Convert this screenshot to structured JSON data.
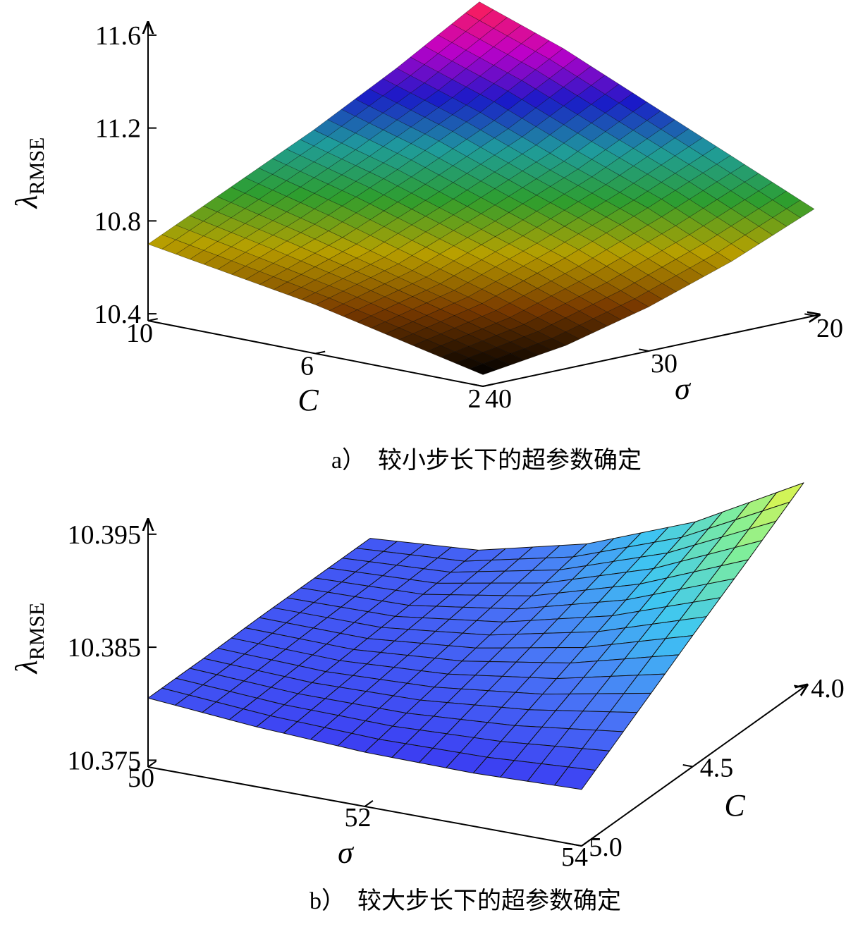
{
  "chart_data": [
    {
      "type": "surface",
      "xlabel": "C",
      "ylabel": "σ",
      "zlabel": "λ",
      "zlabel_subscript": "RMSE",
      "caption": "a）  较小步长下的超参数确定",
      "x": [
        2,
        4,
        6,
        8,
        10
      ],
      "y": [
        20,
        25,
        30,
        35,
        40
      ],
      "z": [
        [
          10.83,
          10.68,
          10.56,
          10.47,
          10.42
        ],
        [
          10.99,
          10.84,
          10.7,
          10.58,
          10.5
        ],
        [
          11.15,
          10.97,
          10.82,
          10.68,
          10.58
        ],
        [
          11.31,
          11.11,
          10.94,
          10.78,
          10.64
        ],
        [
          11.44,
          11.23,
          11.04,
          10.87,
          10.7
        ]
      ],
      "xlim": [
        2,
        10
      ],
      "ylim": [
        20,
        40
      ],
      "zlim": [
        10.37,
        11.63
      ],
      "xticks": [
        2,
        6,
        10
      ],
      "yticks": [
        20,
        30,
        40
      ],
      "zticks": [
        10.4,
        10.8,
        11.2,
        11.6
      ],
      "colormap": [
        "#000000",
        "#7a3a00",
        "#b8a000",
        "#2e9e2e",
        "#1f9c9c",
        "#1a1ac8",
        "#c000c8",
        "#ff2050"
      ]
    },
    {
      "type": "surface",
      "xlabel": "σ",
      "ylabel": "C",
      "zlabel": "λ",
      "zlabel_subscript": "RMSE",
      "caption": "b）  较大步长下的超参数确定",
      "x": [
        50,
        51,
        52,
        53,
        54
      ],
      "y": [
        4,
        4.25,
        4.5,
        4.75,
        5
      ],
      "z": [
        [
          10.3806,
          10.3806,
          10.3806,
          10.3805,
          10.3805
        ],
        [
          10.3813,
          10.3809,
          10.3805,
          10.3801,
          10.3797
        ],
        [
          10.3836,
          10.3825,
          10.3814,
          10.3803,
          10.3792
        ],
        [
          10.3873,
          10.3853,
          10.3832,
          10.3812,
          10.3791
        ],
        [
          10.3925,
          10.3892,
          10.386,
          10.3827,
          10.3794
        ]
      ],
      "xlim": [
        50,
        54
      ],
      "ylim": [
        4,
        5
      ],
      "zlim": [
        10.3744,
        10.3958
      ],
      "xticks": [
        50,
        52,
        54
      ],
      "yticks": [
        {
          "value": 4,
          "label": "4.0"
        },
        {
          "value": 4.5,
          "label": "4.5"
        },
        {
          "value": 5,
          "label": "5.0"
        }
      ],
      "zticks": [
        10.375,
        10.385,
        10.395
      ],
      "colormap": [
        "#3b3bf2",
        "#4a78f6",
        "#3ec6f2",
        "#80ef9a",
        "#f6f63a"
      ]
    }
  ]
}
